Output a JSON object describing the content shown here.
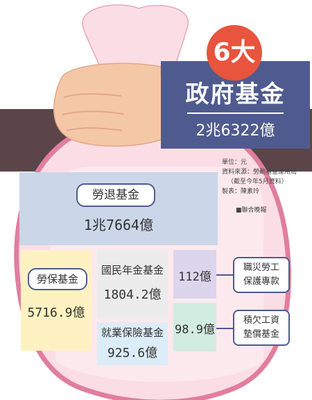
{
  "badge": "6大",
  "headline": "政府基金",
  "total": "2兆6322億",
  "meta": {
    "unit": "單位：元",
    "source": "資料來源：勞動基金運用局",
    "source_note": "（截至今年5月資料）",
    "chart_by": "製表：陳素玲",
    "publisher": "■聯合晚報"
  },
  "funds": [
    {
      "name": "勞退基金",
      "value": "1兆7664億"
    },
    {
      "name": "勞保基金",
      "value": "5716.9億"
    },
    {
      "name": "國民年金基金",
      "value": "1804.2億"
    },
    {
      "name": "就業保險基金",
      "value": "925.6億"
    },
    {
      "name": "職災勞工保護專款",
      "value": "112億"
    },
    {
      "name": "積欠工資墊償基金",
      "value": "98.9億"
    }
  ],
  "colors": {
    "panel": "#4f5b8e",
    "band": "#5b4549",
    "badge": "#e8543d",
    "bag": "#fbdde5",
    "bag_edge": "#e07e9e",
    "hand": "#f4c7a6",
    "fund_1": "#cbd6e9",
    "fund_2": "#fff2c2",
    "fund_3": "#ececec",
    "fund_4": "#dcedf8",
    "fund_5": "#dbd6ec",
    "fund_6": "#d2ece2"
  }
}
